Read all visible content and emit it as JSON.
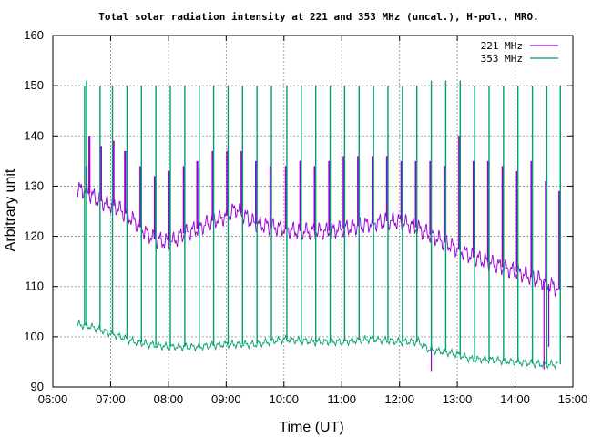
{
  "chart_data": {
    "type": "line",
    "title": "Total solar radiation intensity at 221 and 353 MHz (uncal.), H-pol., MRO.",
    "xlabel": "Time (UT)",
    "ylabel": "Arbitrary unit",
    "xlim": [
      "06:00",
      "15:00"
    ],
    "ylim": [
      90,
      160
    ],
    "xticks": [
      "06:00",
      "07:00",
      "08:00",
      "09:00",
      "10:00",
      "11:00",
      "12:00",
      "13:00",
      "14:00",
      "15:00"
    ],
    "yticks": [
      90,
      100,
      110,
      120,
      130,
      140,
      150,
      160
    ],
    "grid": true,
    "legend_position": "top-right",
    "series": [
      {
        "name": "221 MHz",
        "color": "#9400d3",
        "baseline_points": [
          [
            "06:25",
            129.5
          ],
          [
            "06:35",
            129
          ],
          [
            "06:45",
            127.5
          ],
          [
            "06:55",
            126.5
          ],
          [
            "07:05",
            126
          ],
          [
            "07:15",
            124.5
          ],
          [
            "07:25",
            123
          ],
          [
            "07:35",
            121
          ],
          [
            "07:45",
            119.5
          ],
          [
            "07:55",
            119
          ],
          [
            "08:05",
            119
          ],
          [
            "08:15",
            120.5
          ],
          [
            "08:30",
            121.5
          ],
          [
            "08:45",
            123
          ],
          [
            "09:00",
            124
          ],
          [
            "09:10",
            125.5
          ],
          [
            "09:20",
            124
          ],
          [
            "09:30",
            122.5
          ],
          [
            "09:45",
            122
          ],
          [
            "10:00",
            121.5
          ],
          [
            "10:15",
            121
          ],
          [
            "10:30",
            121
          ],
          [
            "10:45",
            121
          ],
          [
            "11:00",
            121.5
          ],
          [
            "11:15",
            122
          ],
          [
            "11:30",
            122.5
          ],
          [
            "11:45",
            123
          ],
          [
            "12:00",
            123
          ],
          [
            "12:15",
            122
          ],
          [
            "12:30",
            120.5
          ],
          [
            "12:45",
            119
          ],
          [
            "13:00",
            117.5
          ],
          [
            "13:15",
            116
          ],
          [
            "13:30",
            115
          ],
          [
            "13:45",
            114
          ],
          [
            "14:00",
            113
          ],
          [
            "14:15",
            112
          ],
          [
            "14:30",
            111
          ],
          [
            "14:40",
            110
          ],
          [
            "14:45",
            109.5
          ]
        ],
        "spikes": [
          [
            "06:35",
            134
          ],
          [
            "06:38",
            140
          ],
          [
            "06:50",
            138
          ],
          [
            "07:03",
            139
          ],
          [
            "07:15",
            137
          ],
          [
            "07:31",
            134
          ],
          [
            "07:46",
            132
          ],
          [
            "08:01",
            133
          ],
          [
            "08:16",
            134
          ],
          [
            "08:30",
            135
          ],
          [
            "08:46",
            137
          ],
          [
            "09:01",
            137
          ],
          [
            "09:16",
            137
          ],
          [
            "09:31",
            135
          ],
          [
            "09:46",
            134
          ],
          [
            "10:02",
            134
          ],
          [
            "10:17",
            135
          ],
          [
            "10:32",
            134
          ],
          [
            "10:47",
            135
          ],
          [
            "11:02",
            136
          ],
          [
            "11:17",
            136
          ],
          [
            "11:32",
            136
          ],
          [
            "11:47",
            136
          ],
          [
            "12:02",
            135
          ],
          [
            "12:17",
            135
          ],
          [
            "12:32",
            135
          ],
          [
            "12:47",
            134
          ],
          [
            "13:02",
            140
          ],
          [
            "13:17",
            135
          ],
          [
            "13:32",
            135
          ],
          [
            "13:47",
            134
          ],
          [
            "14:02",
            133
          ],
          [
            "14:17",
            135
          ],
          [
            "14:32",
            131
          ],
          [
            "14:46",
            129
          ]
        ],
        "dips": [
          [
            "12:33",
            93
          ],
          [
            "14:30",
            93.5
          ],
          [
            "14:35",
            98
          ]
        ]
      },
      {
        "name": "353 MHz",
        "color": "#009e73",
        "baseline_points": [
          [
            "06:25",
            102.5
          ],
          [
            "06:40",
            102
          ],
          [
            "06:55",
            101
          ],
          [
            "07:10",
            100
          ],
          [
            "07:25",
            99
          ],
          [
            "07:40",
            98.5
          ],
          [
            "08:00",
            98
          ],
          [
            "08:30",
            98
          ],
          [
            "09:00",
            98.5
          ],
          [
            "09:30",
            98.5
          ],
          [
            "10:00",
            99.5
          ],
          [
            "10:30",
            99
          ],
          [
            "11:00",
            99
          ],
          [
            "11:30",
            99.5
          ],
          [
            "12:00",
            99
          ],
          [
            "12:20",
            99
          ],
          [
            "12:30",
            97.5
          ],
          [
            "12:45",
            97
          ],
          [
            "13:00",
            96.5
          ],
          [
            "13:15",
            95.5
          ],
          [
            "13:30",
            95.5
          ],
          [
            "14:00",
            95
          ],
          [
            "14:30",
            94.5
          ],
          [
            "14:45",
            94.5
          ]
        ],
        "spikes": [
          [
            "06:33",
            150
          ],
          [
            "06:35",
            151
          ],
          [
            "06:49",
            150
          ],
          [
            "07:02",
            150
          ],
          [
            "07:17",
            150
          ],
          [
            "07:32",
            150
          ],
          [
            "07:47",
            150
          ],
          [
            "08:02",
            150
          ],
          [
            "08:17",
            150
          ],
          [
            "08:32",
            150
          ],
          [
            "08:47",
            150
          ],
          [
            "09:02",
            150
          ],
          [
            "09:17",
            150
          ],
          [
            "09:32",
            150
          ],
          [
            "09:47",
            150
          ],
          [
            "10:03",
            150
          ],
          [
            "10:18",
            150
          ],
          [
            "10:33",
            150
          ],
          [
            "10:48",
            150
          ],
          [
            "11:03",
            150
          ],
          [
            "11:18",
            150
          ],
          [
            "11:33",
            150
          ],
          [
            "11:48",
            150
          ],
          [
            "12:03",
            150
          ],
          [
            "12:18",
            150
          ],
          [
            "12:33",
            151
          ],
          [
            "12:48",
            151
          ],
          [
            "13:03",
            151
          ],
          [
            "13:18",
            150
          ],
          [
            "13:33",
            150
          ],
          [
            "13:48",
            150
          ],
          [
            "14:03",
            150
          ],
          [
            "14:18",
            150
          ],
          [
            "14:33",
            150
          ],
          [
            "14:47",
            150
          ]
        ]
      }
    ]
  }
}
